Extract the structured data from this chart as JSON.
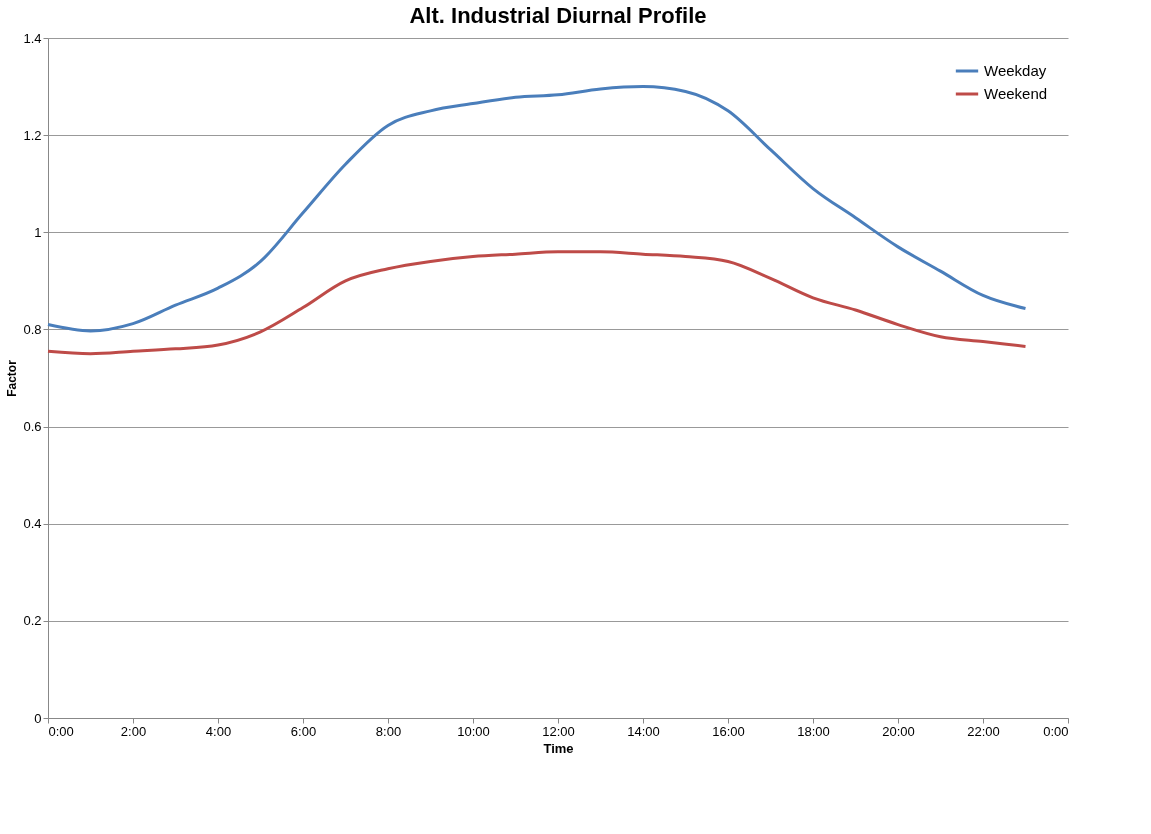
{
  "chart_data": {
    "type": "line",
    "title": "Alt. Industrial Diurnal Profile",
    "xlabel": "Time",
    "ylabel": "Factor",
    "x": [
      0,
      1,
      2,
      3,
      4,
      5,
      6,
      7,
      8,
      9,
      10,
      11,
      12,
      13,
      14,
      15,
      16,
      17,
      18,
      19,
      20,
      21,
      22,
      23
    ],
    "series": [
      {
        "name": "Weekday",
        "color": "#4a7ebb",
        "values": [
          0.81,
          0.797,
          0.812,
          0.85,
          0.885,
          0.94,
          1.04,
          1.14,
          1.22,
          1.25,
          1.265,
          1.278,
          1.283,
          1.295,
          1.3,
          1.29,
          1.25,
          1.17,
          1.09,
          1.03,
          0.97,
          0.92,
          0.87,
          0.843
        ]
      },
      {
        "name": "Weekend",
        "color": "#be4b48",
        "values": [
          0.755,
          0.75,
          0.755,
          0.76,
          0.768,
          0.795,
          0.845,
          0.9,
          0.925,
          0.94,
          0.95,
          0.955,
          0.96,
          0.96,
          0.955,
          0.95,
          0.94,
          0.905,
          0.865,
          0.84,
          0.81,
          0.785,
          0.775,
          0.765
        ]
      }
    ],
    "xlim": [
      0,
      24
    ],
    "xticks": [
      {
        "value": 0,
        "label": "0:00"
      },
      {
        "value": 2,
        "label": "2:00"
      },
      {
        "value": 4,
        "label": "4:00"
      },
      {
        "value": 6,
        "label": "6:00"
      },
      {
        "value": 8,
        "label": "8:00"
      },
      {
        "value": 10,
        "label": "10:00"
      },
      {
        "value": 12,
        "label": "12:00"
      },
      {
        "value": 14,
        "label": "14:00"
      },
      {
        "value": 16,
        "label": "16:00"
      },
      {
        "value": 18,
        "label": "18:00"
      },
      {
        "value": 20,
        "label": "20:00"
      },
      {
        "value": 22,
        "label": "22:00"
      },
      {
        "value": 24,
        "label": "0:00"
      }
    ],
    "ylim": [
      0,
      1.4
    ],
    "yticks": [
      0,
      0.2,
      0.4,
      0.6,
      0.8,
      1,
      1.2,
      1.4
    ],
    "grid": "y",
    "legend": "top right",
    "marker": "none",
    "line_style": "solid"
  }
}
